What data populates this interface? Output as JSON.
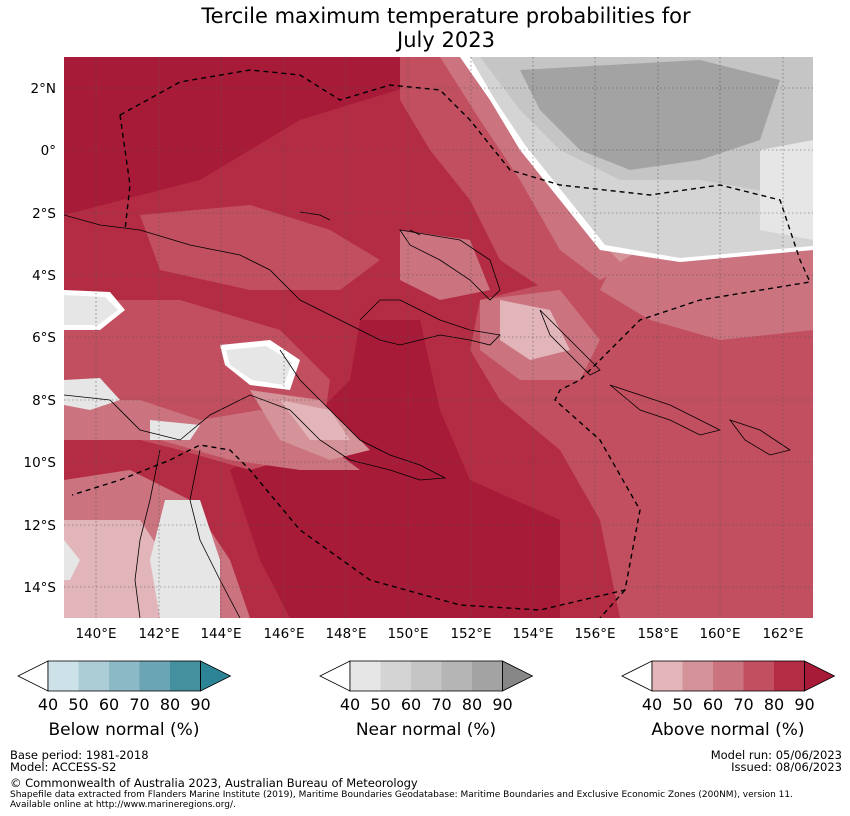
{
  "title": {
    "line1": "Tercile maximum temperature probabilities for",
    "line2": "July 2023"
  },
  "map": {
    "lat_labels": [
      "2°N",
      "0°",
      "2°S",
      "4°S",
      "6°S",
      "8°S",
      "10°S",
      "12°S",
      "14°S"
    ],
    "lon_labels": [
      "140°E",
      "142°E",
      "144°E",
      "146°E",
      "148°E",
      "150°E",
      "152°E",
      "154°E",
      "156°E",
      "158°E",
      "160°E",
      "162°E"
    ],
    "extent": {
      "lon_min": 139,
      "lon_max": 163,
      "lat_min": -15,
      "lat_max": 3
    }
  },
  "legends": [
    {
      "label": "Below normal (%)",
      "ticks": [
        "40",
        "50",
        "60",
        "70",
        "80",
        "90"
      ],
      "colors": [
        "#cde2e8",
        "#adcdd6",
        "#8cb9c6",
        "#6aa5b6",
        "#45909f",
        "#2d8497"
      ]
    },
    {
      "label": "Near normal (%)",
      "ticks": [
        "40",
        "50",
        "60",
        "70",
        "80",
        "90"
      ],
      "colors": [
        "#e6e6e6",
        "#d4d4d4",
        "#c5c5c5",
        "#b5b5b5",
        "#a3a3a3",
        "#878787"
      ]
    },
    {
      "label": "Above normal (%)",
      "ticks": [
        "40",
        "50",
        "60",
        "70",
        "80",
        "90"
      ],
      "colors": [
        "#e2b5ba",
        "#d49299",
        "#cb7480",
        "#c24f60",
        "#b42c44",
        "#a81b38"
      ]
    }
  ],
  "footer": {
    "base_period": "Base period: 1981-2018",
    "model": "Model: ACCESS-S2",
    "model_run": "Model run: 05/06/2023",
    "issued": "Issued: 08/06/2023",
    "copyright": "© Commonwealth of Australia 2023, Australian Bureau of Meteorology",
    "shapefile1": "Shapefile data extracted from Flanders Marine Institute (2019), Maritime Boundaries Geodatabase: Maritime Boundaries and Exclusive Economic Zones (200NM), version 11.",
    "shapefile2": "Available online at http://www.marineregions.org/."
  }
}
